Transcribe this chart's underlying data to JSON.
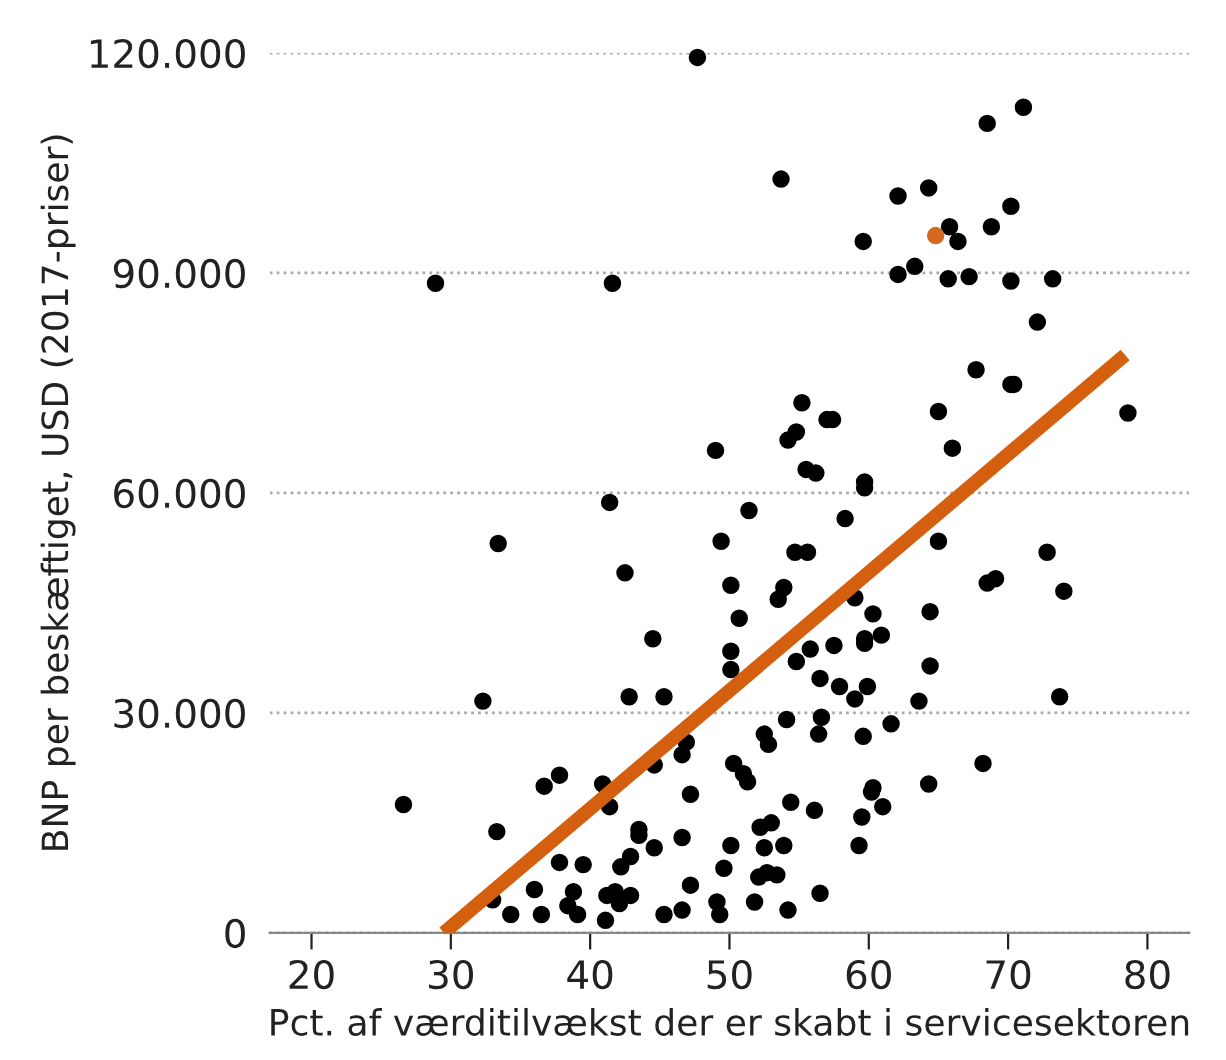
{
  "chart_data": {
    "type": "scatter",
    "xlabel": "Pct. af værditilvækst der er skabt i servicesektoren",
    "ylabel": "BNP per beskæftiget, USD (2017-priser)",
    "xlim": [
      17,
      83
    ],
    "xticks": [
      20,
      30,
      40,
      50,
      60,
      70,
      80
    ],
    "ylim": [
      0,
      120000
    ],
    "yticks": [
      {
        "value": 0,
        "label": "0"
      },
      {
        "value": 30000,
        "label": "30.000"
      },
      {
        "value": 60000,
        "label": "60.000"
      },
      {
        "value": 90000,
        "label": "90.000"
      },
      {
        "value": 120000,
        "label": "120.000"
      }
    ],
    "grid": "y",
    "series": [
      {
        "color": "#000000",
        "marker": "circle",
        "x": [
          47.7,
          28.9,
          41.6,
          49.0,
          53.7,
          68.5,
          71.1,
          62.1,
          64.3,
          59.6,
          65.8,
          66.4,
          70.2,
          68.8,
          62.1,
          63.3,
          65.7,
          67.2,
          70.2,
          73.2,
          72.1,
          67.7,
          70.2,
          70.4,
          78.6,
          65.0,
          66.0,
          55.2,
          57.0,
          57.4,
          54.8,
          54.2,
          55.5,
          56.2,
          59.7,
          59.7,
          51.4,
          58.3,
          65.0,
          72.8,
          54.7,
          55.6,
          74.0,
          68.5,
          69.1,
          50.1,
          53.9,
          53.5,
          59.0,
          60.3,
          64.4,
          50.7,
          60.9,
          59.7,
          59.7,
          50.1,
          50.1,
          55.8,
          57.5,
          54.8,
          56.5,
          64.4,
          57.9,
          59.9,
          59.0,
          63.6,
          73.7,
          54.1,
          56.6,
          61.6,
          56.4,
          52.5,
          52.8,
          59.6,
          68.2,
          50.3,
          51.0,
          51.3,
          64.3,
          60.3,
          60.2,
          61.0,
          54.4,
          56.1,
          52.2,
          53.0,
          59.5,
          50.1,
          52.5,
          53.9,
          59.3,
          52.1,
          52.7,
          53.4,
          51.8,
          54.2,
          56.5,
          41.4,
          33.4,
          42.5,
          49.4,
          44.5,
          32.3,
          42.8,
          45.3,
          46.9,
          46.6,
          44.6,
          37.8,
          36.7,
          40.9,
          41.4,
          26.6,
          47.2,
          33.3,
          43.5,
          43.5,
          42.9,
          42.2,
          44.6,
          46.6,
          49.6,
          37.8,
          39.5,
          36.0,
          38.8,
          41.2,
          41.8,
          42.9,
          47.2,
          33.0,
          34.3,
          36.5,
          38.4,
          39.1,
          42.1,
          41.1,
          45.3,
          46.6,
          49.1,
          49.3
        ],
        "values": [
          119400,
          88600,
          88600,
          65800,
          102800,
          110400,
          112600,
          100500,
          101600,
          94300,
          96300,
          94300,
          99100,
          96300,
          89800,
          90900,
          89200,
          89500,
          88900,
          89200,
          83300,
          76800,
          74800,
          74800,
          70900,
          71100,
          66100,
          72300,
          70000,
          70000,
          68300,
          67200,
          63200,
          62700,
          61500,
          60700,
          57600,
          56500,
          53400,
          51900,
          51900,
          51900,
          46600,
          47700,
          48300,
          47400,
          47100,
          45500,
          45700,
          43500,
          43800,
          42900,
          40600,
          40100,
          39500,
          38400,
          35900,
          38700,
          39200,
          37000,
          34700,
          36400,
          33600,
          33600,
          31900,
          31600,
          32200,
          29100,
          29400,
          28500,
          27100,
          27100,
          25700,
          26800,
          23100,
          23100,
          21700,
          20600,
          20300,
          19800,
          19200,
          17200,
          17800,
          16700,
          14400,
          15000,
          15800,
          11900,
          11600,
          11900,
          11900,
          7600,
          8200,
          7900,
          4200,
          3100,
          5400,
          58700,
          53100,
          49100,
          53400,
          40100,
          31600,
          32200,
          32200,
          26000,
          24300,
          22900,
          21500,
          20000,
          20300,
          17200,
          17500,
          18900,
          13800,
          14100,
          13300,
          10400,
          9000,
          11600,
          13000,
          8800,
          9600,
          9300,
          5900,
          5600,
          5100,
          5600,
          5100,
          6500,
          4500,
          2500,
          2500,
          3700,
          2500,
          4000,
          1700,
          2500,
          3100,
          4200,
          2500
        ]
      },
      {
        "color": "#d2691e",
        "marker": "circle",
        "x": [
          64.8
        ],
        "values": [
          95100
        ]
      },
      {
        "type": "line",
        "color": "#d45f0e",
        "marker": "none",
        "line_style": "solid",
        "x": [
          29.5,
          78.4
        ],
        "values": [
          0,
          78800
        ]
      }
    ]
  }
}
